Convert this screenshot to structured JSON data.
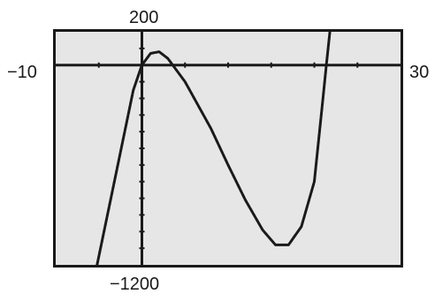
{
  "window": {
    "xmin_label": "−10",
    "xmax_label": "30",
    "ymin_label": "−1200",
    "ymax_label": "200"
  },
  "chart_data": {
    "type": "line",
    "title": "",
    "xlabel": "",
    "ylabel": "",
    "xlim": [
      -10,
      30
    ],
    "ylim": [
      -1200,
      200
    ],
    "xscl": 5,
    "yscl": 100,
    "grid": false,
    "series": [
      {
        "values": [
          {
            "x": -5.2,
            "y": -1200
          },
          {
            "x": -3,
            "y": -650
          },
          {
            "x": -1,
            "y": -150
          },
          {
            "x": 0,
            "y": 0
          },
          {
            "x": 1,
            "y": 70
          },
          {
            "x": 2,
            "y": 80
          },
          {
            "x": 3,
            "y": 40
          },
          {
            "x": 5,
            "y": -100
          },
          {
            "x": 8,
            "y": -380
          },
          {
            "x": 10,
            "y": -600
          },
          {
            "x": 12,
            "y": -810
          },
          {
            "x": 14,
            "y": -990
          },
          {
            "x": 15.5,
            "y": -1080
          },
          {
            "x": 17,
            "y": -1080
          },
          {
            "x": 18.5,
            "y": -970
          },
          {
            "x": 20,
            "y": -700
          },
          {
            "x": 21,
            "y": -200
          },
          {
            "x": 21.4,
            "y": 0
          },
          {
            "x": 21.8,
            "y": 200
          }
        ]
      }
    ],
    "line_color": "#1a1a1a",
    "background_color": "#e6e6e6"
  }
}
